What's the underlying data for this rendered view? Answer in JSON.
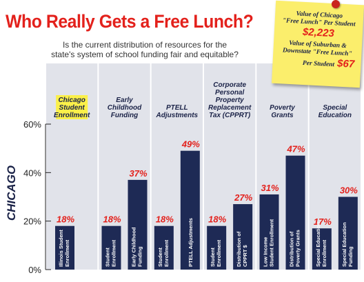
{
  "header": {
    "title": "Who Really Gets a Free Lunch?",
    "subtitle_line1": "Is the current distribution of resources for the",
    "subtitle_line2": "state's system of school funding fair and equitable?"
  },
  "sticky_note": {
    "line1": "Value of Chicago",
    "line2": "\"Free Lunch\" Per Student",
    "value1": "$2,223",
    "line3": "Value of  Suburban &",
    "line4": "Downstate \"Free Lunch\"",
    "line5": "Per Student",
    "value2": "$67"
  },
  "colors": {
    "title_red": "#e3211c",
    "bar_navy": "#1e2a55",
    "panel_gray": "#e1e3ea",
    "label_navy": "#1a2247",
    "highlight_yellow": "#fbf04a",
    "note_yellow": "#fbee6c"
  },
  "chart_data": {
    "type": "bar",
    "title": "Who Really Gets a Free Lunch?",
    "ylabel": "CHICAGO",
    "ylim": [
      0,
      60
    ],
    "yticks": [
      "0%",
      "20%",
      "40%",
      "60%"
    ],
    "grid": false,
    "groups": [
      {
        "heading": [
          "Chicago",
          "Student",
          "Enrollment"
        ],
        "highlight": true,
        "bars": [
          {
            "label": "Illinois Student Enrollment",
            "value": 18,
            "display": "18%"
          }
        ]
      },
      {
        "heading": [
          "Early",
          "Childhood",
          "Funding"
        ],
        "bars": [
          {
            "label": "Student Enrollment",
            "value": 18,
            "display": "18%"
          },
          {
            "label": "Early Childhood Funding",
            "value": 37,
            "display": "37%"
          }
        ]
      },
      {
        "heading": [
          "PTELL",
          "Adjustments"
        ],
        "bars": [
          {
            "label": "Student Enrollment",
            "value": 18,
            "display": "18%"
          },
          {
            "label": "PTELL Adjustments",
            "value": 49,
            "display": "49%"
          }
        ]
      },
      {
        "heading": [
          "Corporate",
          "Personal",
          "Property",
          "Replacement",
          "Tax (CPPRT)"
        ],
        "bars": [
          {
            "label": "Student Enrollment",
            "value": 18,
            "display": "18%"
          },
          {
            "label": "Distribution of CPPRT $",
            "value": 27,
            "display": "27%"
          }
        ]
      },
      {
        "heading": [
          "Poverty",
          "Grants"
        ],
        "bars": [
          {
            "label": "Low Income Student Enrollment",
            "value": 31,
            "display": "31%"
          },
          {
            "label": "Distribution of Poverty Grants",
            "value": 47,
            "display": "47%"
          }
        ]
      },
      {
        "heading": [
          "Special",
          "Education"
        ],
        "bars": [
          {
            "label": "Special Education Enrollment",
            "value": 17,
            "display": "17%"
          },
          {
            "label": "Special Education Funding",
            "value": 30,
            "display": "30%"
          }
        ]
      }
    ]
  }
}
